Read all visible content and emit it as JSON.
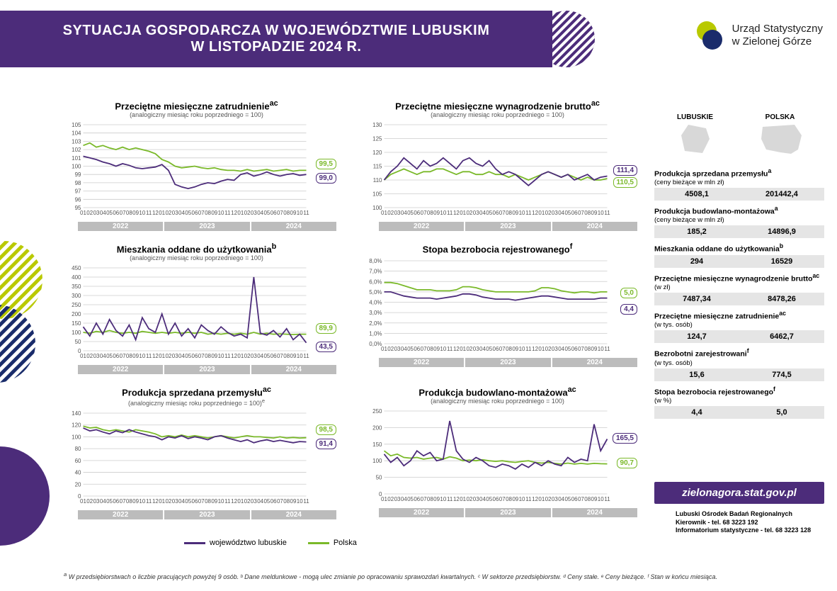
{
  "colors": {
    "purple": "#4c2c7a",
    "green": "#7ab929",
    "grid": "#cccccc",
    "yearbar": "#bcbcbc",
    "logoGreen": "#b9c900",
    "logoBlue": "#1a2c6b"
  },
  "header": {
    "line1": "SYTUACJA GOSPODARCZA W WOJEWÓDZTWIE LUBUSKIM",
    "line2": "W LISTOPADZIE 2024 R."
  },
  "logo": {
    "line1": "Urząd Statystyczny",
    "line2": "w Zielonej Górze"
  },
  "years": [
    "2022",
    "2023",
    "2024"
  ],
  "xticks": [
    "01",
    "02",
    "03",
    "04",
    "05",
    "06",
    "07",
    "08",
    "09",
    "10",
    "11",
    "12",
    "01",
    "02",
    "03",
    "04",
    "05",
    "06",
    "07",
    "08",
    "09",
    "10",
    "11",
    "12",
    "01",
    "02",
    "03",
    "04",
    "05",
    "06",
    "07",
    "08",
    "09",
    "10",
    "11",
    "12"
  ],
  "legend": {
    "series1": "województwo lubuskie",
    "series2": "Polska"
  },
  "charts": [
    {
      "title": "Przeciętne miesięczne zatrudnienie",
      "sup": "ac",
      "sub": "(analogiczny miesiąc roku poprzedniego = 100)",
      "ylim": [
        95,
        105
      ],
      "ytick_step": 1,
      "purple": [
        101.2,
        101.0,
        100.8,
        100.5,
        100.3,
        100.0,
        100.3,
        100.1,
        99.8,
        99.7,
        99.8,
        99.9,
        100.2,
        99.5,
        97.8,
        97.5,
        97.3,
        97.5,
        97.8,
        98.0,
        97.9,
        98.2,
        98.4,
        98.3,
        99.0,
        99.2,
        98.8,
        99.0,
        99.3,
        99.0,
        98.8,
        99.0,
        99.1,
        98.9,
        99.0
      ],
      "green": [
        102.5,
        102.8,
        102.3,
        102.5,
        102.2,
        102.0,
        102.3,
        102.0,
        102.2,
        102.0,
        101.8,
        101.5,
        100.8,
        100.5,
        100.0,
        99.8,
        99.9,
        100.0,
        99.8,
        99.7,
        99.8,
        99.6,
        99.5,
        99.5,
        99.4,
        99.6,
        99.4,
        99.5,
        99.6,
        99.4,
        99.5,
        99.6,
        99.4,
        99.5,
        99.5
      ],
      "end_purple": "99,0",
      "end_green": "99,5"
    },
    {
      "title": "Przeciętne miesięczne wynagrodzenie brutto",
      "sup": "ac",
      "sub": "(analogiczny miesiąc roku poprzedniego = 100)",
      "ylim": [
        100,
        130
      ],
      "ytick_step": 5,
      "purple": [
        110,
        113,
        115,
        118,
        116,
        114,
        117,
        115,
        116,
        118,
        116,
        114,
        117,
        118,
        116,
        115,
        117,
        114,
        112,
        113,
        112,
        110,
        108,
        110,
        112,
        113,
        112,
        111,
        112,
        110,
        111,
        112,
        110,
        111,
        111.4
      ],
      "green": [
        110,
        112,
        113,
        114,
        113,
        112,
        113,
        113,
        114,
        114,
        113,
        112,
        113,
        113,
        112,
        112,
        113,
        112,
        112,
        111,
        112,
        111,
        110,
        111,
        112,
        113,
        112,
        111,
        112,
        111,
        110,
        111,
        110,
        110,
        110.5
      ],
      "end_purple": "111,4",
      "end_green": "110,5"
    },
    {
      "title": "Mieszkania oddane do użytkowania",
      "sup": "b",
      "sub": "(analogiczny miesiąc roku poprzedniego = 100)",
      "ylim": [
        0,
        450
      ],
      "ytick_step": 50,
      "purple": [
        130,
        80,
        150,
        90,
        170,
        110,
        80,
        140,
        60,
        180,
        120,
        100,
        200,
        90,
        150,
        80,
        120,
        70,
        140,
        110,
        90,
        130,
        100,
        80,
        90,
        70,
        400,
        95,
        85,
        110,
        75,
        120,
        60,
        90,
        43.5
      ],
      "green": [
        100,
        95,
        105,
        100,
        110,
        100,
        95,
        100,
        95,
        105,
        100,
        95,
        100,
        95,
        100,
        95,
        100,
        95,
        100,
        90,
        95,
        90,
        95,
        90,
        95,
        90,
        100,
        90,
        95,
        90,
        92,
        90,
        88,
        90,
        89.9
      ],
      "end_purple": "43,5",
      "end_green": "89,9"
    },
    {
      "title": "Stopa bezrobocia rejestrowanego",
      "sup": "f",
      "sub": "",
      "ylim": [
        0,
        8
      ],
      "ytick_step": 1,
      "y_suffix": ",0%",
      "purple": [
        5.0,
        5.0,
        4.8,
        4.6,
        4.5,
        4.4,
        4.4,
        4.4,
        4.3,
        4.4,
        4.5,
        4.6,
        4.8,
        4.8,
        4.7,
        4.5,
        4.4,
        4.3,
        4.3,
        4.3,
        4.2,
        4.3,
        4.4,
        4.5,
        4.6,
        4.6,
        4.5,
        4.4,
        4.3,
        4.3,
        4.3,
        4.3,
        4.3,
        4.4,
        4.4
      ],
      "green": [
        5.9,
        5.9,
        5.8,
        5.6,
        5.4,
        5.2,
        5.2,
        5.2,
        5.1,
        5.1,
        5.1,
        5.2,
        5.5,
        5.5,
        5.4,
        5.2,
        5.1,
        5.0,
        5.0,
        5.0,
        5.0,
        5.0,
        5.0,
        5.1,
        5.4,
        5.4,
        5.3,
        5.1,
        5.0,
        4.9,
        5.0,
        5.0,
        4.9,
        5.0,
        5.0
      ],
      "end_purple": "4,4",
      "end_green": "5,0"
    },
    {
      "title": "Produkcja sprzedana przemysłu",
      "sup": "ac",
      "sub": "(analogiczny miesiąc roku poprzedniego = 100)",
      "sub_sup": "e",
      "ylim": [
        0,
        140
      ],
      "ytick_step": 20,
      "purple": [
        115,
        110,
        112,
        108,
        105,
        110,
        107,
        112,
        108,
        105,
        102,
        100,
        95,
        100,
        98,
        102,
        97,
        100,
        98,
        95,
        100,
        102,
        98,
        95,
        92,
        95,
        90,
        93,
        95,
        92,
        94,
        92,
        90,
        92,
        91.4
      ],
      "green": [
        118,
        115,
        116,
        112,
        110,
        112,
        110,
        108,
        112,
        110,
        108,
        105,
        100,
        102,
        100,
        103,
        100,
        102,
        100,
        98,
        100,
        102,
        100,
        98,
        100,
        102,
        100,
        100,
        99,
        98,
        100,
        98,
        99,
        98,
        98.5
      ],
      "end_purple": "91,4",
      "end_green": "98,5"
    },
    {
      "title": "Produkcja budowlano-montażowa",
      "sup": "ac",
      "sub": "(analogiczny miesiąc roku poprzedniego = 100)",
      "ylim": [
        0,
        250
      ],
      "ytick_step": 50,
      "purple": [
        120,
        95,
        110,
        85,
        100,
        130,
        115,
        125,
        100,
        105,
        220,
        130,
        105,
        95,
        110,
        100,
        85,
        80,
        90,
        85,
        75,
        90,
        80,
        95,
        85,
        100,
        90,
        85,
        110,
        95,
        105,
        100,
        210,
        130,
        165.5
      ],
      "green": [
        130,
        115,
        120,
        110,
        108,
        110,
        105,
        108,
        110,
        105,
        112,
        108,
        100,
        102,
        100,
        103,
        100,
        98,
        100,
        97,
        95,
        98,
        100,
        95,
        93,
        95,
        92,
        90,
        93,
        90,
        92,
        90,
        92,
        91,
        90.7
      ],
      "end_purple": "165,5",
      "end_green": "90,7"
    }
  ],
  "side": {
    "headers": {
      "left": "LUBUSKIE",
      "right": "POLSKA"
    },
    "rows": [
      {
        "label": "Produkcja sprzedana przemysłu",
        "sup": "a",
        "unit": "(ceny bieżące w mln zł)",
        "v1": "4508,1",
        "v2": "201442,4"
      },
      {
        "label": "Produkcja budowlano-montażowa",
        "sup": "a",
        "unit": "(ceny bieżące w mln zł)",
        "v1": "185,2",
        "v2": "14896,9"
      },
      {
        "label": "Mieszkania oddane do użytkowania",
        "sup": "b",
        "unit": "",
        "v1": "294",
        "v2": "16529"
      },
      {
        "label": "Przeciętne miesięczne wynagrodzenie brutto",
        "sup": "ac",
        "unit": "(w zł)",
        "v1": "7487,34",
        "v2": "8478,26"
      },
      {
        "label": "Przeciętne miesięczne zatrudnienie",
        "sup": "ac",
        "unit": "(w tys. osób)",
        "v1": "124,7",
        "v2": "6462,7"
      },
      {
        "label": "Bezrobotni zarejestrowani",
        "sup": "f",
        "unit": "(w tys. osób)",
        "v1": "15,6",
        "v2": "774,5"
      },
      {
        "label": "Stopa bezrobocia rejestrowanego",
        "sup": "f",
        "unit": "(w %)",
        "v1": "4,4",
        "v2": "5,0"
      }
    ]
  },
  "url": "zielonagora.stat.gov.pl",
  "contact": {
    "l1": "Lubuski Ośrodek Badań Regionalnych",
    "l2": "Kierownik - tel. 68 3223 192",
    "l3": "Informatorium statystyczne - tel. 68 3223 128"
  },
  "footnote_label": "a",
  "footnote": "W przedsiębiorstwach o liczbie pracujących powyżej 9 osób. ᵇ Dane meldunkowe - mogą ulec zmianie po opracowaniu sprawozdań kwartalnych. ᶜ W sektorze przedsiębiorstw. ᵈ Ceny stałe. ᵉ Ceny bieżące. ᶠ Stan w końcu miesiąca."
}
